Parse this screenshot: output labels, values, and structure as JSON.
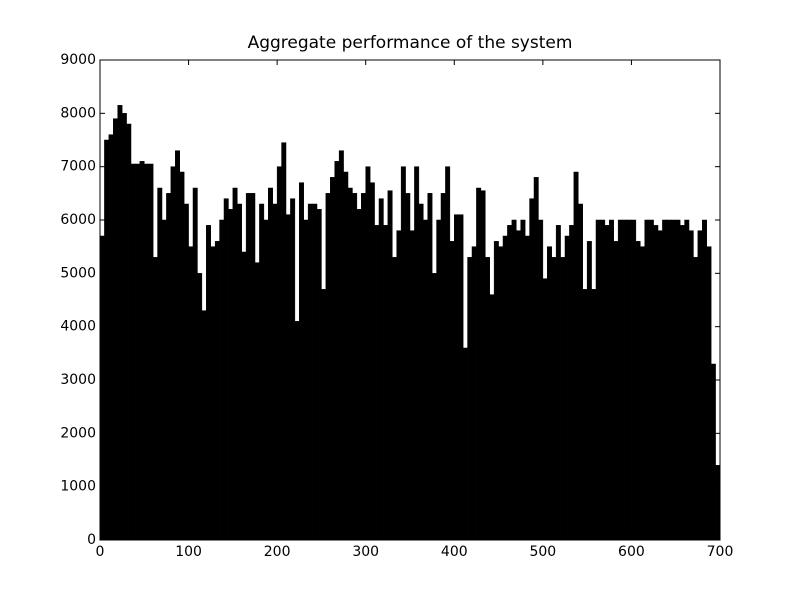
{
  "chart_data": {
    "type": "bar",
    "title": "Aggregate performance of the system",
    "color": "#000000",
    "x": [
      0,
      5,
      10,
      15,
      20,
      25,
      30,
      35,
      40,
      45,
      50,
      55,
      60,
      65,
      70,
      75,
      80,
      85,
      90,
      95,
      100,
      105,
      110,
      115,
      120,
      125,
      130,
      135,
      140,
      145,
      150,
      155,
      160,
      165,
      170,
      175,
      180,
      185,
      190,
      195,
      200,
      205,
      210,
      215,
      220,
      225,
      230,
      235,
      240,
      245,
      250,
      255,
      260,
      265,
      270,
      275,
      280,
      285,
      290,
      295,
      300,
      305,
      310,
      315,
      320,
      325,
      330,
      335,
      340,
      345,
      350,
      355,
      360,
      365,
      370,
      375,
      380,
      385,
      390,
      395,
      400,
      405,
      410,
      415,
      420,
      425,
      430,
      435,
      440,
      445,
      450,
      455,
      460,
      465,
      470,
      475,
      480,
      485,
      490,
      495,
      500,
      505,
      510,
      515,
      520,
      525,
      530,
      535,
      540,
      545,
      550,
      555,
      560,
      565,
      570,
      575,
      580,
      585,
      590,
      595,
      600,
      605,
      610,
      615,
      620,
      625,
      630,
      635,
      640,
      645,
      650,
      655,
      660,
      665,
      670,
      675,
      680,
      685,
      690,
      695
    ],
    "values": [
      5700,
      7500,
      7600,
      7900,
      8150,
      8000,
      7800,
      7050,
      7050,
      7100,
      7050,
      7050,
      5300,
      6600,
      6000,
      6500,
      7000,
      7300,
      6900,
      6300,
      5500,
      6600,
      5000,
      4300,
      5900,
      5500,
      5600,
      6000,
      6400,
      6200,
      6600,
      6300,
      5400,
      6500,
      6500,
      5200,
      6300,
      6000,
      6600,
      6300,
      7000,
      7450,
      6100,
      6400,
      4100,
      6700,
      6000,
      6300,
      6300,
      6200,
      4700,
      6500,
      6800,
      7100,
      7300,
      6900,
      6600,
      6500,
      6200,
      6500,
      7000,
      6700,
      5900,
      6400,
      5900,
      6550,
      5300,
      5800,
      7000,
      6500,
      5800,
      7000,
      6300,
      6000,
      6500,
      5000,
      6000,
      6500,
      7000,
      5600,
      6100,
      6100,
      3600,
      5300,
      5500,
      6600,
      6550,
      5300,
      4600,
      5600,
      5500,
      5700,
      5900,
      6000,
      5800,
      6000,
      5700,
      6400,
      6800,
      6000,
      4900,
      5500,
      5300,
      5900,
      5300,
      5700,
      5900,
      6900,
      6300,
      4700,
      5600,
      4700,
      6000,
      6000,
      5900,
      6000,
      5600,
      6000,
      6000,
      6000,
      6000,
      5600,
      5500,
      6000,
      6000,
      5900,
      5800,
      6000,
      6000,
      6000,
      6000,
      5900,
      6000,
      5800,
      5300,
      5800,
      6000,
      5500,
      3300,
      1400
    ],
    "xlim": [
      0,
      700
    ],
    "ylim": [
      0,
      9000
    ],
    "xticks": [
      0,
      100,
      200,
      300,
      400,
      500,
      600,
      700
    ],
    "yticks": [
      0,
      1000,
      2000,
      3000,
      4000,
      5000,
      6000,
      7000,
      8000,
      9000
    ]
  }
}
